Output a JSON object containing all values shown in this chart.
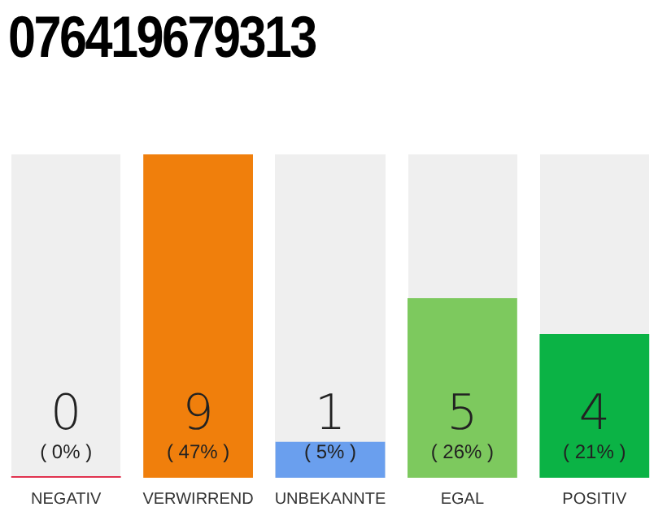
{
  "chart_data": {
    "type": "bar",
    "title": "076419679313",
    "categories": [
      "NEGATIV",
      "VERWIRREND",
      "UNBEKANNTE",
      "EGAL",
      "POSITIV"
    ],
    "values": [
      0,
      9,
      1,
      5,
      4
    ],
    "colors": [
      "#e0334f",
      "#f07f0c",
      "#6a9fee",
      "#7dc95e",
      "#0bb345"
    ],
    "data_labels": true,
    "annotations": [
      "( 0% )",
      "( 47% )",
      "( 5% )",
      "( 26% )",
      "( 21% )"
    ],
    "grid": false,
    "legend": false,
    "tick_labels": "x"
  }
}
